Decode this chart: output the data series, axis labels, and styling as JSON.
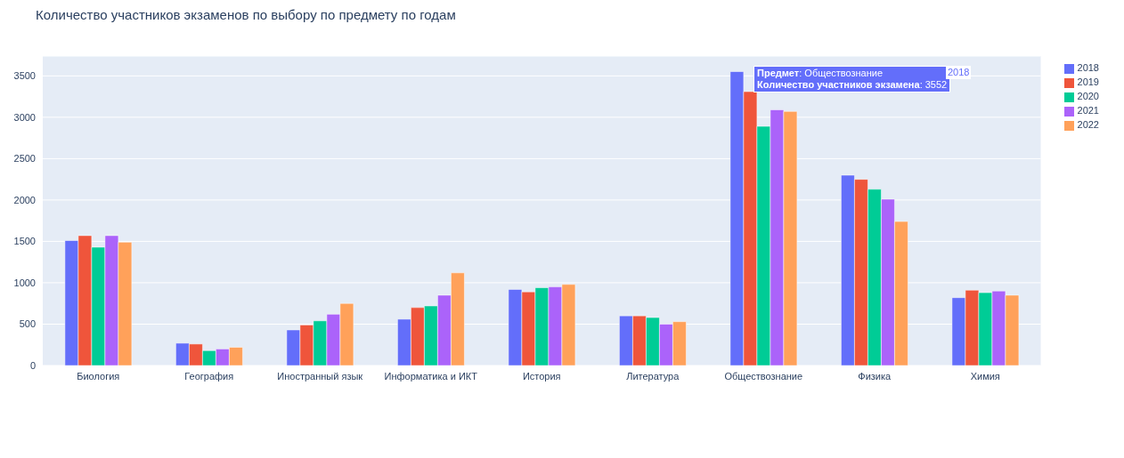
{
  "chart_data": {
    "type": "bar",
    "title": "Количество участников экзаменов по выбору по предмету по годам",
    "categories": [
      "Биология",
      "География",
      "Иностранный язык",
      "Информатика и ИКТ",
      "История",
      "Литература",
      "Обществознание",
      "Физика",
      "Химия"
    ],
    "series": [
      {
        "name": "2018",
        "color": "#636efa",
        "values": [
          1510,
          270,
          430,
          560,
          920,
          600,
          3552,
          2300,
          820
        ]
      },
      {
        "name": "2019",
        "color": "#ef553b",
        "values": [
          1570,
          260,
          490,
          700,
          890,
          600,
          3310,
          2250,
          910
        ]
      },
      {
        "name": "2020",
        "color": "#00cc96",
        "values": [
          1430,
          180,
          540,
          720,
          940,
          580,
          2890,
          2130,
          880
        ]
      },
      {
        "name": "2021",
        "color": "#ab63fa",
        "values": [
          1570,
          200,
          620,
          850,
          950,
          500,
          3090,
          2010,
          900
        ]
      },
      {
        "name": "2022",
        "color": "#ffa15a",
        "values": [
          1490,
          220,
          750,
          1120,
          980,
          530,
          3070,
          1740,
          850
        ]
      }
    ],
    "ylim": [
      0,
      3740
    ],
    "yticks": [
      0,
      500,
      1000,
      1500,
      2000,
      2500,
      3000,
      3500
    ],
    "grid": "y",
    "legend": "right",
    "annotations": [
      "Предмет: Обществознание\nКоличество участников экзамена: 3552",
      "2018"
    ]
  }
}
